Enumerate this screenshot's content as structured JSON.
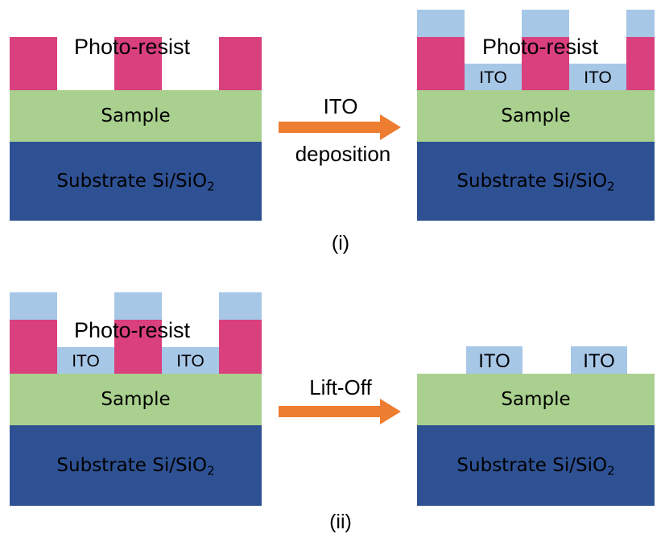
{
  "labels": {
    "photo_resist": "Photo-resist",
    "sample": "Sample",
    "substrate_prefix": "Substrate Si/SiO",
    "substrate_subscript": "2",
    "ito": "ITO"
  },
  "arrows": {
    "top": {
      "line1": "ITO",
      "line2": "deposition"
    },
    "bottom": {
      "line1": "Lift-Off"
    }
  },
  "panels": {
    "top": "(i)",
    "bottom": "(ii)"
  },
  "colors": {
    "substrate": "#2e5194",
    "sample": "#a9d08e",
    "photo_resist": "#da3f7e",
    "ito": "#a7c7e7",
    "arrow": "#ed7d31"
  }
}
